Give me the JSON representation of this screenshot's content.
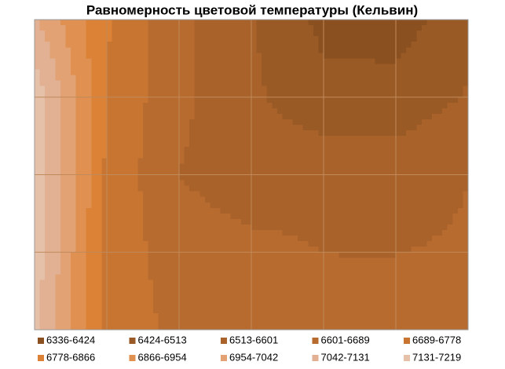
{
  "chart_data": {
    "type": "contour",
    "title": "Равномерность цветовой температуры (Кельвин)",
    "z": [
      [
        7050,
        6790,
        6620,
        6520,
        6400,
        6380,
        6480
      ],
      [
        7200,
        6770,
        6620,
        6530,
        6450,
        6460,
        6520
      ],
      [
        7200,
        6760,
        6600,
        6560,
        6580,
        6560,
        6600
      ],
      [
        7190,
        6750,
        6640,
        6620,
        6600,
        6600,
        6610
      ],
      [
        7150,
        6760,
        6660,
        6640,
        6630,
        6620,
        6640
      ]
    ],
    "bands": [
      {
        "name": "6336-6424",
        "min": 6336,
        "max": 6424,
        "color": "#8a5020"
      },
      {
        "name": "6424-6513",
        "min": 6424,
        "max": 6513,
        "color": "#9a5a25"
      },
      {
        "name": "6513-6601",
        "min": 6513,
        "max": 6601,
        "color": "#a8622a"
      },
      {
        "name": "6601-6689",
        "min": 6601,
        "max": 6689,
        "color": "#b86b2e"
      },
      {
        "name": "6689-6778",
        "min": 6689,
        "max": 6778,
        "color": "#c87532"
      },
      {
        "name": "6778-6866",
        "min": 6778,
        "max": 6866,
        "color": "#dc8236"
      },
      {
        "name": "6866-6954",
        "min": 6866,
        "max": 6954,
        "color": "#e09050"
      },
      {
        "name": "6954-7042",
        "min": 6954,
        "max": 7042,
        "color": "#e2a274"
      },
      {
        "name": "7042-7131",
        "min": 7042,
        "max": 7131,
        "color": "#e2b194"
      },
      {
        "name": "7131-7219",
        "min": 7131,
        "max": 7219,
        "color": "#e5c1aa"
      }
    ],
    "grid": true
  }
}
